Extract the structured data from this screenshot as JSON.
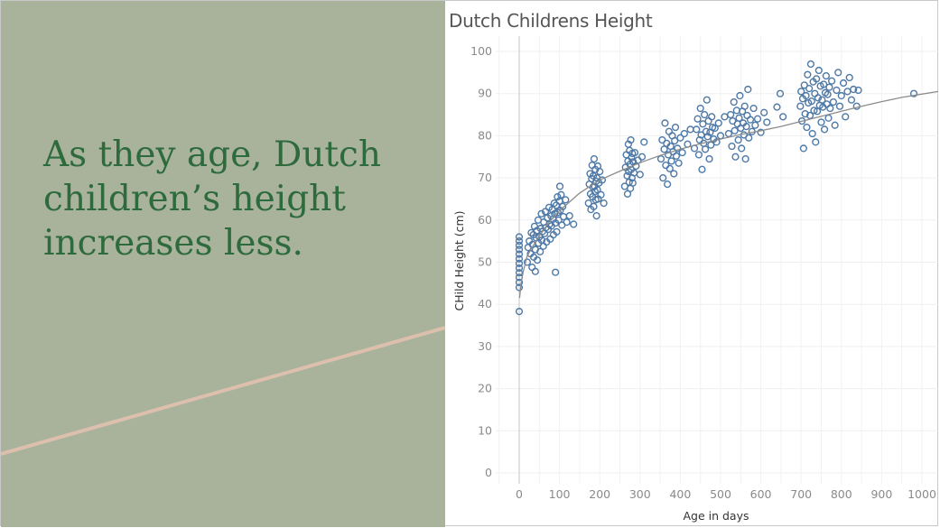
{
  "slide": {
    "headline_lines": [
      "As they age, Dutch",
      "children’s height",
      "increases less."
    ],
    "panel_color": "#a9b29b",
    "headline_color": "#2e6b3c",
    "accent_line_color": "#dcc0ad"
  },
  "chart_data": {
    "type": "scatter",
    "title": "Dutch Childrens Height",
    "xlabel": "Age in days",
    "ylabel": "CHild Height (cm)",
    "xlim": [
      -60,
      1040
    ],
    "ylim": [
      0,
      103
    ],
    "xticks": [
      0,
      100,
      200,
      300,
      400,
      500,
      600,
      700,
      800,
      900,
      1000
    ],
    "yticks": [
      0,
      10,
      20,
      30,
      40,
      50,
      60,
      70,
      80,
      90,
      100
    ],
    "grid": true,
    "marker": "hollow-circle",
    "point_color": "#4e79a7",
    "trend_color": "#8c8c8c",
    "trendline": {
      "model": "logarithmic",
      "x": [
        1,
        5,
        10,
        20,
        30,
        50,
        75,
        100,
        150,
        200,
        250,
        300,
        350,
        400,
        450,
        500,
        550,
        600,
        650,
        700,
        750,
        800,
        850,
        900,
        950,
        1040
      ],
      "y": [
        41.5,
        45.2,
        47.8,
        51.5,
        53.2,
        56.3,
        59.6,
        62.2,
        66.4,
        69.5,
        71.6,
        73.6,
        75.3,
        76.8,
        78.1,
        79.2,
        80.3,
        81.2,
        82.2,
        83.4,
        84.6,
        85.8,
        87.0,
        88.1,
        89.1,
        90.5
      ]
    },
    "points": [
      {
        "x": 0,
        "y": 38.3
      },
      {
        "x": 0,
        "y": 44.0
      },
      {
        "x": 0,
        "y": 45.2
      },
      {
        "x": 0,
        "y": 46.4
      },
      {
        "x": 0,
        "y": 47.5
      },
      {
        "x": 0,
        "y": 48.6
      },
      {
        "x": 0,
        "y": 49.7
      },
      {
        "x": 0,
        "y": 50.8
      },
      {
        "x": 0,
        "y": 51.9
      },
      {
        "x": 0,
        "y": 53.0
      },
      {
        "x": 0,
        "y": 54.0
      },
      {
        "x": 0,
        "y": 55.0
      },
      {
        "x": 0,
        "y": 56.0
      },
      {
        "x": 20,
        "y": 50.0
      },
      {
        "x": 22,
        "y": 53.5
      },
      {
        "x": 25,
        "y": 55.0
      },
      {
        "x": 28,
        "y": 52.0
      },
      {
        "x": 30,
        "y": 57.0
      },
      {
        "x": 32,
        "y": 48.8
      },
      {
        "x": 33,
        "y": 54.2
      },
      {
        "x": 35,
        "y": 56.5
      },
      {
        "x": 36,
        "y": 51.2
      },
      {
        "x": 38,
        "y": 58.5
      },
      {
        "x": 40,
        "y": 53.0
      },
      {
        "x": 42,
        "y": 55.8
      },
      {
        "x": 44,
        "y": 57.5
      },
      {
        "x": 45,
        "y": 50.5
      },
      {
        "x": 47,
        "y": 60.0
      },
      {
        "x": 48,
        "y": 54.5
      },
      {
        "x": 50,
        "y": 56.0
      },
      {
        "x": 52,
        "y": 52.5
      },
      {
        "x": 53,
        "y": 58.0
      },
      {
        "x": 55,
        "y": 61.5
      },
      {
        "x": 56,
        "y": 55.2
      },
      {
        "x": 58,
        "y": 57.3
      },
      {
        "x": 60,
        "y": 53.8
      },
      {
        "x": 61,
        "y": 59.5
      },
      {
        "x": 63,
        "y": 56.8
      },
      {
        "x": 65,
        "y": 62.0
      },
      {
        "x": 66,
        "y": 58.2
      },
      {
        "x": 68,
        "y": 54.8
      },
      {
        "x": 70,
        "y": 60.5
      },
      {
        "x": 72,
        "y": 57.8
      },
      {
        "x": 74,
        "y": 63.0
      },
      {
        "x": 75,
        "y": 59.0
      },
      {
        "x": 77,
        "y": 55.5
      },
      {
        "x": 79,
        "y": 61.0
      },
      {
        "x": 80,
        "y": 58.6
      },
      {
        "x": 82,
        "y": 62.5
      },
      {
        "x": 84,
        "y": 60.2
      },
      {
        "x": 85,
        "y": 56.5
      },
      {
        "x": 87,
        "y": 64.0
      },
      {
        "x": 88,
        "y": 61.5
      },
      {
        "x": 90,
        "y": 59.3
      },
      {
        "x": 92,
        "y": 63.5
      },
      {
        "x": 93,
        "y": 57.2
      },
      {
        "x": 95,
        "y": 65.5
      },
      {
        "x": 96,
        "y": 61.8
      },
      {
        "x": 98,
        "y": 60.0
      },
      {
        "x": 100,
        "y": 64.5
      },
      {
        "x": 101,
        "y": 68.0
      },
      {
        "x": 102,
        "y": 62.3
      },
      {
        "x": 104,
        "y": 66.0
      },
      {
        "x": 106,
        "y": 58.8
      },
      {
        "x": 108,
        "y": 63.2
      },
      {
        "x": 110,
        "y": 60.8
      },
      {
        "x": 115,
        "y": 64.8
      },
      {
        "x": 118,
        "y": 59.5
      },
      {
        "x": 125,
        "y": 61.0
      },
      {
        "x": 135,
        "y": 59.0
      },
      {
        "x": 40,
        "y": 47.8
      },
      {
        "x": 90,
        "y": 47.6
      },
      {
        "x": 172,
        "y": 64.0
      },
      {
        "x": 174,
        "y": 68.5
      },
      {
        "x": 176,
        "y": 71.0
      },
      {
        "x": 177,
        "y": 66.2
      },
      {
        "x": 178,
        "y": 62.5
      },
      {
        "x": 180,
        "y": 69.8
      },
      {
        "x": 181,
        "y": 73.0
      },
      {
        "x": 182,
        "y": 65.5
      },
      {
        "x": 183,
        "y": 67.8
      },
      {
        "x": 184,
        "y": 70.5
      },
      {
        "x": 185,
        "y": 63.2
      },
      {
        "x": 186,
        "y": 74.5
      },
      {
        "x": 187,
        "y": 68.0
      },
      {
        "x": 188,
        "y": 66.8
      },
      {
        "x": 189,
        "y": 72.0
      },
      {
        "x": 190,
        "y": 64.8
      },
      {
        "x": 191,
        "y": 69.2
      },
      {
        "x": 192,
        "y": 61.0
      },
      {
        "x": 193,
        "y": 70.0
      },
      {
        "x": 194,
        "y": 67.2
      },
      {
        "x": 195,
        "y": 72.8
      },
      {
        "x": 196,
        "y": 65.0
      },
      {
        "x": 198,
        "y": 68.8
      },
      {
        "x": 200,
        "y": 71.5
      },
      {
        "x": 203,
        "y": 66.0
      },
      {
        "x": 206,
        "y": 69.5
      },
      {
        "x": 210,
        "y": 64.0
      },
      {
        "x": 262,
        "y": 68.0
      },
      {
        "x": 264,
        "y": 72.5
      },
      {
        "x": 266,
        "y": 75.5
      },
      {
        "x": 268,
        "y": 70.5
      },
      {
        "x": 269,
        "y": 66.2
      },
      {
        "x": 270,
        "y": 74.0
      },
      {
        "x": 271,
        "y": 78.0
      },
      {
        "x": 272,
        "y": 71.5
      },
      {
        "x": 273,
        "y": 69.0
      },
      {
        "x": 274,
        "y": 76.5
      },
      {
        "x": 275,
        "y": 73.2
      },
      {
        "x": 276,
        "y": 67.5
      },
      {
        "x": 277,
        "y": 79.0
      },
      {
        "x": 278,
        "y": 72.0
      },
      {
        "x": 279,
        "y": 74.8
      },
      {
        "x": 280,
        "y": 70.0
      },
      {
        "x": 281,
        "y": 75.8
      },
      {
        "x": 282,
        "y": 68.8
      },
      {
        "x": 283,
        "y": 73.8
      },
      {
        "x": 285,
        "y": 71.2
      },
      {
        "x": 287,
        "y": 76.0
      },
      {
        "x": 290,
        "y": 72.8
      },
      {
        "x": 295,
        "y": 74.2
      },
      {
        "x": 300,
        "y": 70.8
      },
      {
        "x": 305,
        "y": 75.0
      },
      {
        "x": 310,
        "y": 78.5
      },
      {
        "x": 352,
        "y": 74.5
      },
      {
        "x": 355,
        "y": 79.0
      },
      {
        "x": 357,
        "y": 70.0
      },
      {
        "x": 360,
        "y": 76.8
      },
      {
        "x": 362,
        "y": 83.0
      },
      {
        "x": 364,
        "y": 73.0
      },
      {
        "x": 366,
        "y": 78.2
      },
      {
        "x": 368,
        "y": 68.5
      },
      {
        "x": 370,
        "y": 75.5
      },
      {
        "x": 372,
        "y": 81.0
      },
      {
        "x": 374,
        "y": 72.2
      },
      {
        "x": 376,
        "y": 77.5
      },
      {
        "x": 378,
        "y": 74.0
      },
      {
        "x": 380,
        "y": 80.0
      },
      {
        "x": 382,
        "y": 76.2
      },
      {
        "x": 384,
        "y": 71.0
      },
      {
        "x": 386,
        "y": 78.8
      },
      {
        "x": 388,
        "y": 82.0
      },
      {
        "x": 390,
        "y": 75.2
      },
      {
        "x": 393,
        "y": 77.0
      },
      {
        "x": 396,
        "y": 73.5
      },
      {
        "x": 400,
        "y": 79.5
      },
      {
        "x": 405,
        "y": 76.0
      },
      {
        "x": 410,
        "y": 80.5
      },
      {
        "x": 418,
        "y": 78.0
      },
      {
        "x": 425,
        "y": 81.5
      },
      {
        "x": 435,
        "y": 77.0
      },
      {
        "x": 440,
        "y": 81.5
      },
      {
        "x": 443,
        "y": 84.0
      },
      {
        "x": 446,
        "y": 75.5
      },
      {
        "x": 448,
        "y": 79.0
      },
      {
        "x": 450,
        "y": 86.5
      },
      {
        "x": 452,
        "y": 80.2
      },
      {
        "x": 454,
        "y": 72.0
      },
      {
        "x": 456,
        "y": 82.8
      },
      {
        "x": 458,
        "y": 78.2
      },
      {
        "x": 460,
        "y": 85.0
      },
      {
        "x": 462,
        "y": 76.8
      },
      {
        "x": 464,
        "y": 81.0
      },
      {
        "x": 466,
        "y": 88.5
      },
      {
        "x": 468,
        "y": 79.8
      },
      {
        "x": 470,
        "y": 83.5
      },
      {
        "x": 472,
        "y": 74.5
      },
      {
        "x": 474,
        "y": 80.8
      },
      {
        "x": 476,
        "y": 77.8
      },
      {
        "x": 478,
        "y": 84.5
      },
      {
        "x": 480,
        "y": 82.0
      },
      {
        "x": 483,
        "y": 79.2
      },
      {
        "x": 486,
        "y": 81.8
      },
      {
        "x": 490,
        "y": 78.5
      },
      {
        "x": 495,
        "y": 83.0
      },
      {
        "x": 500,
        "y": 80.0
      },
      {
        "x": 510,
        "y": 84.5
      },
      {
        "x": 520,
        "y": 80.5
      },
      {
        "x": 525,
        "y": 85.0
      },
      {
        "x": 528,
        "y": 77.5
      },
      {
        "x": 530,
        "y": 83.5
      },
      {
        "x": 533,
        "y": 88.0
      },
      {
        "x": 535,
        "y": 81.2
      },
      {
        "x": 537,
        "y": 75.0
      },
      {
        "x": 540,
        "y": 86.0
      },
      {
        "x": 542,
        "y": 82.8
      },
      {
        "x": 544,
        "y": 79.0
      },
      {
        "x": 546,
        "y": 84.2
      },
      {
        "x": 548,
        "y": 89.5
      },
      {
        "x": 550,
        "y": 81.8
      },
      {
        "x": 552,
        "y": 77.0
      },
      {
        "x": 554,
        "y": 85.8
      },
      {
        "x": 556,
        "y": 83.0
      },
      {
        "x": 558,
        "y": 80.2
      },
      {
        "x": 560,
        "y": 87.0
      },
      {
        "x": 562,
        "y": 74.5
      },
      {
        "x": 564,
        "y": 82.2
      },
      {
        "x": 566,
        "y": 84.8
      },
      {
        "x": 568,
        "y": 91.0
      },
      {
        "x": 570,
        "y": 79.5
      },
      {
        "x": 574,
        "y": 83.8
      },
      {
        "x": 578,
        "y": 81.0
      },
      {
        "x": 582,
        "y": 86.5
      },
      {
        "x": 586,
        "y": 82.5
      },
      {
        "x": 592,
        "y": 84.0
      },
      {
        "x": 600,
        "y": 80.8
      },
      {
        "x": 608,
        "y": 85.5
      },
      {
        "x": 615,
        "y": 83.2
      },
      {
        "x": 640,
        "y": 86.8
      },
      {
        "x": 648,
        "y": 90.0
      },
      {
        "x": 655,
        "y": 84.5
      },
      {
        "x": 698,
        "y": 87.0
      },
      {
        "x": 700,
        "y": 90.5
      },
      {
        "x": 702,
        "y": 83.5
      },
      {
        "x": 704,
        "y": 88.8
      },
      {
        "x": 706,
        "y": 77.0
      },
      {
        "x": 708,
        "y": 92.0
      },
      {
        "x": 710,
        "y": 85.2
      },
      {
        "x": 712,
        "y": 89.5
      },
      {
        "x": 714,
        "y": 82.0
      },
      {
        "x": 716,
        "y": 94.5
      },
      {
        "x": 718,
        "y": 87.8
      },
      {
        "x": 720,
        "y": 91.2
      },
      {
        "x": 722,
        "y": 84.8
      },
      {
        "x": 724,
        "y": 97.0
      },
      {
        "x": 726,
        "y": 88.2
      },
      {
        "x": 728,
        "y": 80.5
      },
      {
        "x": 730,
        "y": 92.8
      },
      {
        "x": 732,
        "y": 86.0
      },
      {
        "x": 734,
        "y": 90.0
      },
      {
        "x": 736,
        "y": 78.5
      },
      {
        "x": 738,
        "y": 93.5
      },
      {
        "x": 740,
        "y": 85.8
      },
      {
        "x": 742,
        "y": 89.0
      },
      {
        "x": 744,
        "y": 95.5
      },
      {
        "x": 746,
        "y": 87.2
      },
      {
        "x": 748,
        "y": 91.8
      },
      {
        "x": 750,
        "y": 83.2
      },
      {
        "x": 752,
        "y": 88.5
      },
      {
        "x": 754,
        "y": 86.8
      },
      {
        "x": 756,
        "y": 92.2
      },
      {
        "x": 758,
        "y": 81.5
      },
      {
        "x": 760,
        "y": 90.2
      },
      {
        "x": 762,
        "y": 94.2
      },
      {
        "x": 764,
        "y": 87.5
      },
      {
        "x": 766,
        "y": 89.8
      },
      {
        "x": 768,
        "y": 84.2
      },
      {
        "x": 770,
        "y": 91.5
      },
      {
        "x": 772,
        "y": 86.5
      },
      {
        "x": 776,
        "y": 93.0
      },
      {
        "x": 780,
        "y": 88.0
      },
      {
        "x": 784,
        "y": 82.5
      },
      {
        "x": 788,
        "y": 90.8
      },
      {
        "x": 792,
        "y": 95.0
      },
      {
        "x": 796,
        "y": 87.0
      },
      {
        "x": 800,
        "y": 89.5
      },
      {
        "x": 805,
        "y": 92.5
      },
      {
        "x": 810,
        "y": 84.5
      },
      {
        "x": 815,
        "y": 90.5
      },
      {
        "x": 820,
        "y": 93.8
      },
      {
        "x": 825,
        "y": 88.5
      },
      {
        "x": 830,
        "y": 91.0
      },
      {
        "x": 838,
        "y": 87.0
      },
      {
        "x": 842,
        "y": 90.8
      },
      {
        "x": 980,
        "y": 90.0
      }
    ]
  }
}
